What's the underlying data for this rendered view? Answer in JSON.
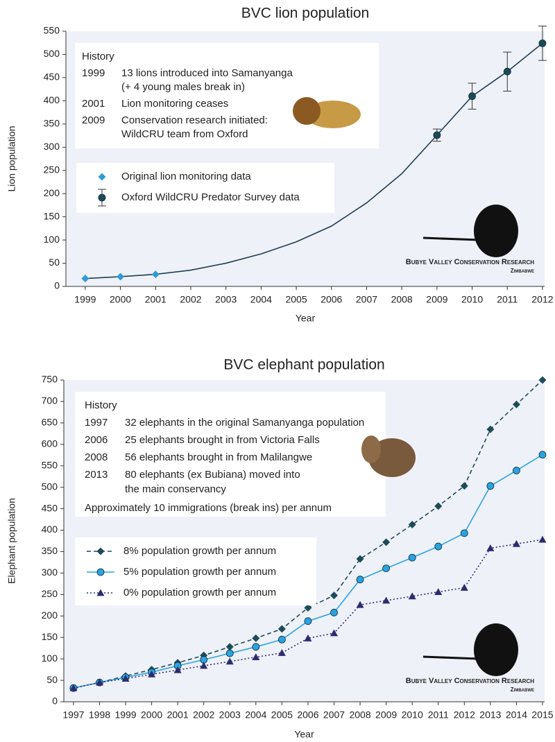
{
  "chart_data": [
    {
      "type": "line",
      "title": "BVC lion population",
      "xlabel": "Year",
      "ylabel": "Lion population",
      "x": [
        1999,
        2000,
        2001,
        2002,
        2003,
        2004,
        2005,
        2006,
        2007,
        2008,
        2009,
        2010,
        2011,
        2012
      ],
      "xlim": [
        1998.45,
        2012.06
      ],
      "xticks": [
        1999,
        2000,
        2001,
        2002,
        2003,
        2004,
        2005,
        2006,
        2007,
        2008,
        2009,
        2010,
        2011,
        2012
      ],
      "ylim": [
        0,
        550
      ],
      "yticks": [
        0,
        50,
        100,
        150,
        200,
        250,
        300,
        350,
        400,
        450,
        500,
        550
      ],
      "series": [
        {
          "color": "#1d3e4f",
          "line": "solid",
          "marker": "none",
          "values": [
            17,
            21,
            26,
            35,
            50,
            70,
            96,
            130,
            180,
            243,
            326,
            410,
            463,
            524
          ]
        },
        {
          "name": "Original lion monitoring data",
          "color": "#2f9bd6",
          "line": "none",
          "marker": "diamond",
          "values": [
            17,
            21,
            26,
            null,
            null,
            null,
            null,
            null,
            null,
            null,
            null,
            null,
            null,
            null
          ]
        },
        {
          "name": "Oxford WildCRU Predator Survey data",
          "color": "#1d4a57",
          "line": "none",
          "marker": "circle",
          "values": [
            null,
            null,
            null,
            null,
            null,
            null,
            null,
            null,
            null,
            null,
            326,
            410,
            463,
            524
          ],
          "errors": [
            null,
            null,
            null,
            null,
            null,
            null,
            null,
            null,
            null,
            null,
            13,
            28,
            42,
            37
          ]
        }
      ],
      "history": {
        "heading": "History",
        "entries": [
          {
            "year": "1999",
            "text": [
              "13 lions introduced into Samanyanga",
              "(+ 4 young males break in)"
            ]
          },
          {
            "year": "2001",
            "text": [
              "Lion monitoring ceases"
            ]
          },
          {
            "year": "2009",
            "text": [
              "Conservation research initiated:",
              "WildCRU team from Oxford"
            ]
          }
        ]
      },
      "logo": {
        "name": "Bubye Valley Conservation Research",
        "country": "Zimbabwe"
      }
    },
    {
      "type": "line",
      "title": "BVC elephant population",
      "xlabel": "Year",
      "ylabel": "Elephant population",
      "x": [
        1997,
        1998,
        1999,
        2000,
        2001,
        2002,
        2003,
        2004,
        2005,
        2006,
        2007,
        2008,
        2009,
        2010,
        2011,
        2012,
        2013,
        2014,
        2015
      ],
      "xlim": [
        1996.63,
        2015.08
      ],
      "xticks": [
        1997,
        1998,
        1999,
        2000,
        2001,
        2002,
        2003,
        2004,
        2005,
        2006,
        2007,
        2008,
        2009,
        2010,
        2011,
        2012,
        2013,
        2014,
        2015
      ],
      "ylim": [
        0,
        750
      ],
      "yticks": [
        0,
        50,
        100,
        150,
        200,
        250,
        300,
        350,
        400,
        450,
        500,
        550,
        600,
        650,
        700,
        750
      ],
      "series": [
        {
          "name": "8% population growth per annum",
          "color": "#1f4b58",
          "line": "dashed",
          "marker": "diamond",
          "values": [
            32,
            45,
            60,
            75,
            91,
            108,
            128,
            148,
            170,
            219,
            248,
            333,
            372,
            413,
            456,
            503,
            635,
            693,
            750
          ]
        },
        {
          "name": "5% population growth per annum",
          "color": "#2aa3e0",
          "line": "solid",
          "marker": "circle",
          "values": [
            32,
            45,
            57,
            69,
            84,
            98,
            113,
            128,
            145,
            188,
            208,
            285,
            311,
            336,
            362,
            393,
            503,
            539,
            576
          ]
        },
        {
          "name": "0% population growth per annum",
          "color": "#2b2b6e",
          "line": "dotted",
          "marker": "triangle",
          "values": [
            32,
            45,
            54,
            64,
            74,
            84,
            94,
            104,
            114,
            148,
            160,
            226,
            236,
            246,
            256,
            266,
            358,
            368,
            378
          ]
        }
      ],
      "history": {
        "heading": "History",
        "entries": [
          {
            "year": "1997",
            "text": [
              "32 elephants in the original Samanyanga population"
            ]
          },
          {
            "year": "2006",
            "text": [
              "25 elephants brought in from Victoria Falls"
            ]
          },
          {
            "year": "2008",
            "text": [
              "56 elephants brought in from Malilangwe"
            ]
          },
          {
            "year": "2013",
            "text": [
              "80 elephants (ex Bubiana) moved into",
              "the main conservancy"
            ]
          }
        ],
        "note": "Approximately 10 immigrations (break ins) per annum"
      },
      "logo": {
        "name": "Bubye Valley Conservation Research",
        "country": "Zimbabwe"
      }
    }
  ]
}
